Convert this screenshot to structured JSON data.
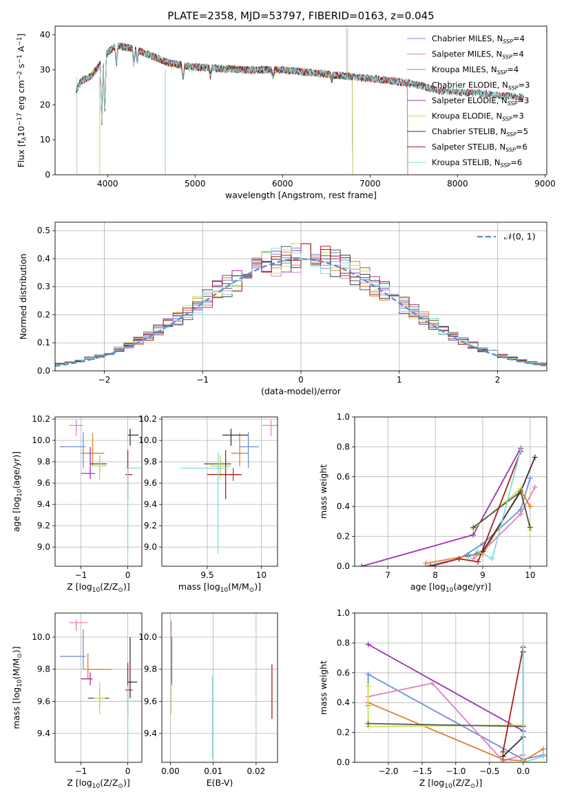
{
  "figure": {
    "title": "PLATE=2358, MJD=53797, FIBERID=0163, z=0.045"
  },
  "chart_data": [
    {
      "id": "spectrum",
      "type": "line",
      "title": "PLATE=2358, MJD=53797, FIBERID=0163, z=0.045",
      "xlabel": "wavelength [Angstrom, rest frame]",
      "ylabel_parts": [
        "Flux [f",
        "λ",
        "10",
        "−17",
        " erg cm",
        "−2",
        " s",
        "−1",
        " A",
        "−1",
        "]"
      ],
      "xlim": [
        3400,
        9020
      ],
      "ylim": [
        0,
        42.5
      ],
      "xticks": [
        4000,
        5000,
        6000,
        7000,
        8000,
        9000
      ],
      "yticks": [
        0,
        10,
        20,
        30,
        40
      ],
      "grid": false,
      "legend_position": "top-right",
      "continuum": [
        [
          3640,
          24
        ],
        [
          3700,
          27
        ],
        [
          3800,
          28
        ],
        [
          3900,
          31
        ],
        [
          3960,
          33
        ],
        [
          4000,
          35
        ],
        [
          4100,
          37
        ],
        [
          4300,
          36
        ],
        [
          4500,
          34
        ],
        [
          4700,
          32
        ],
        [
          4900,
          31
        ],
        [
          5200,
          30.5
        ],
        [
          5600,
          30
        ],
        [
          6000,
          30
        ],
        [
          6400,
          29
        ],
        [
          6800,
          28
        ],
        [
          7200,
          27
        ],
        [
          7500,
          26
        ],
        [
          7800,
          24
        ],
        [
          8100,
          23.5
        ],
        [
          8400,
          23
        ],
        [
          8760,
          22
        ]
      ],
      "series": [
        {
          "name": "Chabrier MILES",
          "nssp": "4",
          "color": "#6b8fd6",
          "xmax": 7430
        },
        {
          "name": "Salpeter MILES",
          "nssp": "4",
          "color": "#e07fc0",
          "xmax": 7430
        },
        {
          "name": "Kroupa MILES",
          "nssp": "4",
          "color": "#e07e2a",
          "xmax": 7430
        },
        {
          "name": "Chabrier ELODIE",
          "nssp": "3",
          "color": "#555555",
          "xmax": 6800
        },
        {
          "name": "Salpeter ELODIE",
          "nssp": "3",
          "color": "#9b2fb0",
          "xmax": 6800
        },
        {
          "name": "Kroupa ELODIE",
          "nssp": "3",
          "color": "#c8e14a",
          "xmax": 6800
        },
        {
          "name": "Chabrier STELIB",
          "nssp": "5",
          "color": "#333333",
          "xmax": 8760
        },
        {
          "name": "Salpeter STELIB",
          "nssp": "6",
          "color": "#b01818",
          "xmax": 8760
        },
        {
          "name": "Kroupa STELIB",
          "nssp": "6",
          "color": "#7fdbe0",
          "xmax": 8760
        }
      ],
      "data_trace": {
        "color": "#aaaaaa",
        "xrange": [
          3640,
          8760
        ]
      }
    },
    {
      "id": "residuals",
      "type": "histogram",
      "xlabel": "(data-model)/error",
      "ylabel": "Normed distribution",
      "xlim": [
        -2.5,
        2.5
      ],
      "ylim": [
        0,
        0.53
      ],
      "xticks": [
        -2,
        -1,
        0,
        1,
        2
      ],
      "xticklabels": [
        "−2",
        "−1",
        "0",
        "1",
        "2"
      ],
      "yticks": [
        0.0,
        0.1,
        0.2,
        0.3,
        0.4,
        0.5
      ],
      "grid": true,
      "legend": "𝒩(0, 1)",
      "legend_position": "top-right",
      "reference": {
        "name": "normal",
        "mean": 0,
        "sd": 1,
        "color": "#5b8fd6"
      },
      "bin_edges": [
        -2.5,
        2.5
      ],
      "bin_width": 0.1
    },
    {
      "id": "age-vs-Z",
      "type": "errorbar",
      "xlabel_parts": [
        "Z [log",
        "10",
        "(Z/Z",
        "⊙",
        ")]"
      ],
      "ylabel_parts": [
        "age  [log",
        "10",
        "(age/yr)]"
      ],
      "xlim": [
        -1.55,
        0.3
      ],
      "ylim": [
        8.82,
        10.22
      ],
      "xticks": [
        -1,
        0
      ],
      "xticklabels": [
        "−1",
        "0"
      ],
      "yticks": [
        9.0,
        9.2,
        9.4,
        9.6,
        9.8,
        10.0,
        10.2
      ],
      "grid": true,
      "points": [
        {
          "color": "#e07fc0",
          "x": -1.1,
          "xerr": [
            0.15,
            0.15
          ],
          "y": 10.14,
          "yerr": [
            0.1,
            0.05
          ]
        },
        {
          "color": "#6b8fd6",
          "x": -0.95,
          "xerr": [
            0.5,
            0.05
          ],
          "y": 9.94,
          "yerr": [
            0.2,
            0.14
          ]
        },
        {
          "color": "#e07e2a",
          "x": -0.75,
          "xerr": [
            0.25,
            0.25
          ],
          "y": 9.88,
          "yerr": [
            0.12,
            0.19
          ]
        },
        {
          "color": "#9b2fb0",
          "x": -0.8,
          "xerr": [
            0.2,
            0.1
          ],
          "y": 9.69,
          "yerr": [
            0.05,
            0.25
          ]
        },
        {
          "color": "#555555",
          "x": -0.6,
          "xerr": [
            0.2,
            0.15
          ],
          "y": 9.78,
          "yerr": [
            0.08,
            0.08
          ]
        },
        {
          "color": "#c8e14a",
          "x": -0.6,
          "xerr": [
            0.15,
            0.15
          ],
          "y": 9.76,
          "yerr": [
            0.13,
            0.1
          ]
        },
        {
          "color": "#333333",
          "x": 0.05,
          "xerr": [
            0.05,
            0.18
          ],
          "y": 10.05,
          "yerr": [
            0.1,
            0.06
          ]
        },
        {
          "color": "#b01818",
          "x": 0.0,
          "xerr": [
            0.05,
            0.1
          ],
          "y": 9.68,
          "yerr": [
            0.23,
            0.23
          ]
        },
        {
          "color": "#7fdbe0",
          "x": 0.0,
          "xerr": [
            0.05,
            0.28
          ],
          "y": 9.74,
          "yerr": [
            0.8,
            0.0
          ]
        }
      ]
    },
    {
      "id": "age-vs-mass",
      "type": "errorbar",
      "xlabel_parts": [
        "mass [log",
        "10",
        "(M/M",
        "⊙",
        ")]"
      ],
      "ylabel": "",
      "xlim": [
        9.08,
        10.15
      ],
      "ylim": [
        8.82,
        10.22
      ],
      "xticks": [
        9.5,
        10.0
      ],
      "yticks": [
        9.0,
        9.2,
        9.4,
        9.6,
        9.8,
        10.0,
        10.2
      ],
      "grid": true,
      "points": [
        {
          "color": "#e07fc0",
          "x": 10.09,
          "xerr": [
            0.08,
            0.06
          ],
          "y": 10.14,
          "yerr": [
            0.1,
            0.05
          ]
        },
        {
          "color": "#6b8fd6",
          "x": 9.88,
          "xerr": [
            0.08,
            0.1
          ],
          "y": 9.94,
          "yerr": [
            0.2,
            0.14
          ]
        },
        {
          "color": "#e07e2a",
          "x": 9.8,
          "xerr": [
            0.08,
            0.08
          ],
          "y": 9.88,
          "yerr": [
            0.12,
            0.19
          ]
        },
        {
          "color": "#9b2fb0",
          "x": 9.74,
          "xerr": [
            0.08,
            0.08
          ],
          "y": 9.68,
          "yerr": [
            0.06,
            0.06
          ]
        },
        {
          "color": "#555555",
          "x": 9.62,
          "xerr": [
            0.15,
            0.1
          ],
          "y": 9.78,
          "yerr": [
            0.08,
            0.08
          ]
        },
        {
          "color": "#c8e14a",
          "x": 9.62,
          "xerr": [
            0.1,
            0.1
          ],
          "y": 9.76,
          "yerr": [
            0.13,
            0.1
          ]
        },
        {
          "color": "#333333",
          "x": 9.72,
          "xerr": [
            0.08,
            0.16
          ],
          "y": 10.05,
          "yerr": [
            0.1,
            0.06
          ]
        },
        {
          "color": "#b01818",
          "x": 9.67,
          "xerr": [
            0.17,
            0.14
          ],
          "y": 9.68,
          "yerr": [
            0.23,
            0.23
          ]
        },
        {
          "color": "#7fdbe0",
          "x": 9.6,
          "xerr": [
            0.35,
            0.1
          ],
          "y": 9.74,
          "yerr": [
            0.8,
            0.15
          ]
        }
      ]
    },
    {
      "id": "massweight-vs-age",
      "type": "line",
      "xlabel_parts": [
        "age  [log",
        "10",
        "(age/yr)]"
      ],
      "ylabel": "mass weight",
      "xlim": [
        6.3,
        10.35
      ],
      "ylim": [
        0,
        1.0
      ],
      "xticks": [
        7,
        8,
        9,
        10
      ],
      "yticks": [
        0.0,
        0.2,
        0.4,
        0.6,
        0.8,
        1.0
      ],
      "grid": true,
      "series": [
        {
          "color": "#e07fc0",
          "x": [
            8.8,
            9.0,
            9.8,
            10.1
          ],
          "y": [
            0.05,
            0.1,
            0.35,
            0.53
          ]
        },
        {
          "color": "#6b8fd6",
          "x": [
            7.8,
            8.5,
            9.0,
            9.8,
            10.0
          ],
          "y": [
            0.0,
            0.05,
            0.15,
            0.38,
            0.59
          ]
        },
        {
          "color": "#e07e2a",
          "x": [
            7.8,
            8.7,
            9.0,
            9.8,
            10.0
          ],
          "y": [
            0.02,
            0.07,
            0.08,
            0.51,
            0.4
          ]
        },
        {
          "color": "#333333",
          "x": [
            8.7,
            9.0,
            9.8,
            10.1
          ],
          "y": [
            0.07,
            0.1,
            0.5,
            0.73
          ]
        },
        {
          "color": "#9b2fb0",
          "x": [
            6.45,
            8.8,
            9.8
          ],
          "y": [
            0.0,
            0.21,
            0.79
          ]
        },
        {
          "color": "#c8e14a",
          "x": [
            8.8,
            9.8,
            10.0
          ],
          "y": [
            0.25,
            0.52,
            0.24
          ]
        },
        {
          "color": "#555555",
          "x": [
            8.8,
            9.8,
            10.0
          ],
          "y": [
            0.26,
            0.5,
            0.26
          ]
        },
        {
          "color": "#b01818",
          "x": [
            7.9,
            8.5,
            8.9,
            9.8
          ],
          "y": [
            0.0,
            0.05,
            0.03,
            0.77
          ]
        },
        {
          "color": "#7fdbe0",
          "x": [
            8.7,
            8.9,
            9.2,
            9.8
          ],
          "y": [
            0.06,
            0.1,
            0.05,
            0.78
          ]
        }
      ]
    },
    {
      "id": "mass-vs-Z",
      "type": "errorbar",
      "xlabel_parts": [
        "Z [log",
        "10",
        "(Z/Z",
        "⊙",
        ")]"
      ],
      "ylabel_parts": [
        "mass [log",
        "10",
        "(M/M",
        "⊙",
        ")]"
      ],
      "xlim": [
        -1.55,
        0.3
      ],
      "ylim": [
        9.22,
        10.15
      ],
      "xticks": [
        -1,
        0
      ],
      "xticklabels": [
        "−1",
        "0"
      ],
      "yticks": [
        9.4,
        9.6,
        9.8,
        10.0
      ],
      "grid": true,
      "points": [
        {
          "color": "#e07fc0",
          "x": -1.1,
          "xerr": [
            0.15,
            0.25
          ],
          "y": 10.09,
          "yerr": [
            0.05,
            0.02
          ]
        },
        {
          "color": "#6b8fd6",
          "x": -0.95,
          "xerr": [
            0.5,
            0.05
          ],
          "y": 9.88,
          "yerr": [
            0.08,
            0.17
          ]
        },
        {
          "color": "#e07e2a",
          "x": -0.85,
          "xerr": [
            0.1,
            0.5
          ],
          "y": 9.8,
          "yerr": [
            0.06,
            0.1
          ]
        },
        {
          "color": "#9b2fb0",
          "x": -0.8,
          "xerr": [
            0.2,
            0.05
          ],
          "y": 9.74,
          "yerr": [
            0.04,
            0.04
          ]
        },
        {
          "color": "#555555",
          "x": -0.6,
          "xerr": [
            0.25,
            0.2
          ],
          "y": 9.62,
          "yerr": [
            0.06,
            0.06
          ]
        },
        {
          "color": "#c8e14a",
          "x": -0.6,
          "xerr": [
            0.12,
            0.12
          ],
          "y": 9.62,
          "yerr": [
            0.1,
            0.1
          ]
        },
        {
          "color": "#333333",
          "x": 0.05,
          "xerr": [
            0.05,
            0.15
          ],
          "y": 9.72,
          "yerr": [
            0.1,
            0.28
          ]
        },
        {
          "color": "#b01818",
          "x": 0.0,
          "xerr": [
            0.05,
            0.1
          ],
          "y": 9.67,
          "yerr": [
            0.17,
            0.17
          ]
        },
        {
          "color": "#7fdbe0",
          "x": 0.0,
          "xerr": [
            0.05,
            0.28
          ],
          "y": 9.6,
          "yerr": [
            0.35,
            0.1
          ]
        }
      ]
    },
    {
      "id": "mass-vs-ebv",
      "type": "errorbar",
      "xlabel": "E(B-V)",
      "ylabel": "",
      "xlim": [
        -0.002,
        0.025
      ],
      "ylim": [
        9.22,
        10.15
      ],
      "xticks": [
        0.0,
        0.01,
        0.02
      ],
      "xticklabels": [
        "0.00",
        "0.01",
        "0.02"
      ],
      "yticks": [
        9.4,
        9.6,
        9.8,
        10.0
      ],
      "grid": true,
      "points": [
        {
          "color": "#e07fc0",
          "x": 0.0002,
          "xerr": [
            0,
            0
          ],
          "y": 10.05,
          "yerr": [
            0.05,
            0.05
          ]
        },
        {
          "color": "#555555",
          "x": 0.0003,
          "xerr": [
            0,
            0
          ],
          "y": 9.85,
          "yerr": [
            0.15,
            0.15
          ]
        },
        {
          "color": "#c8e14a",
          "x": 0.0002,
          "xerr": [
            0,
            0
          ],
          "y": 9.62,
          "yerr": [
            0.1,
            0.1
          ]
        },
        {
          "color": "#7fdbe0",
          "x": 0.0098,
          "xerr": [
            0,
            0
          ],
          "y": 9.5,
          "yerr": [
            0.26,
            0.26
          ]
        },
        {
          "color": "#b01818",
          "x": 0.0237,
          "xerr": [
            0,
            0
          ],
          "y": 9.66,
          "yerr": [
            0.17,
            0.17
          ]
        }
      ]
    },
    {
      "id": "massweight-vs-Z",
      "type": "line",
      "xlabel_parts": [
        "Z [log",
        "10",
        "(Z/Z",
        "⊙",
        ")]"
      ],
      "ylabel": "mass weight",
      "xlim": [
        -2.5,
        0.35
      ],
      "ylim": [
        0,
        1.0
      ],
      "xticks": [
        -2.0,
        -1.5,
        -1.0,
        -0.5,
        0.0
      ],
      "xticklabels": [
        "−2.0",
        "−1.5",
        "−1.0",
        "−0.5",
        "0.0"
      ],
      "yticks": [
        0.0,
        0.2,
        0.4,
        0.6,
        0.8,
        1.0
      ],
      "grid": true,
      "series": [
        {
          "color": "#9b2fb0",
          "x": [
            -2.3,
            0.0
          ],
          "y": [
            0.79,
            0.21
          ]
        },
        {
          "color": "#6b8fd6",
          "x": [
            -2.3,
            -2.3,
            0.0,
            0.3
          ],
          "y": [
            0.38,
            0.59,
            0.02,
            0.05
          ]
        },
        {
          "color": "#e07fc0",
          "x": [
            -2.3,
            -1.35,
            -0.3,
            0.0
          ],
          "y": [
            0.44,
            0.53,
            0.01,
            0.05
          ]
        },
        {
          "color": "#e07e2a",
          "x": [
            -2.3,
            -0.3,
            0.0,
            0.3
          ],
          "y": [
            0.4,
            0.02,
            0.01,
            0.09
          ]
        },
        {
          "color": "#c8e14a",
          "x": [
            -2.3,
            -2.3,
            0.0
          ],
          "y": [
            0.51,
            0.24,
            0.25
          ]
        },
        {
          "color": "#555555",
          "x": [
            -2.3,
            0.0
          ],
          "y": [
            0.26,
            0.24
          ]
        },
        {
          "color": "#333333",
          "x": [
            -0.3,
            0.0,
            0.0
          ],
          "y": [
            0.04,
            0.17,
            0.74
          ]
        },
        {
          "color": "#b01818",
          "x": [
            -0.3,
            0.0
          ],
          "y": [
            0.07,
            0.77
          ]
        },
        {
          "color": "#7fdbe0",
          "x": [
            0.0,
            0.0,
            0.3
          ],
          "y": [
            0.78,
            0.0,
            0.04
          ]
        }
      ]
    }
  ]
}
